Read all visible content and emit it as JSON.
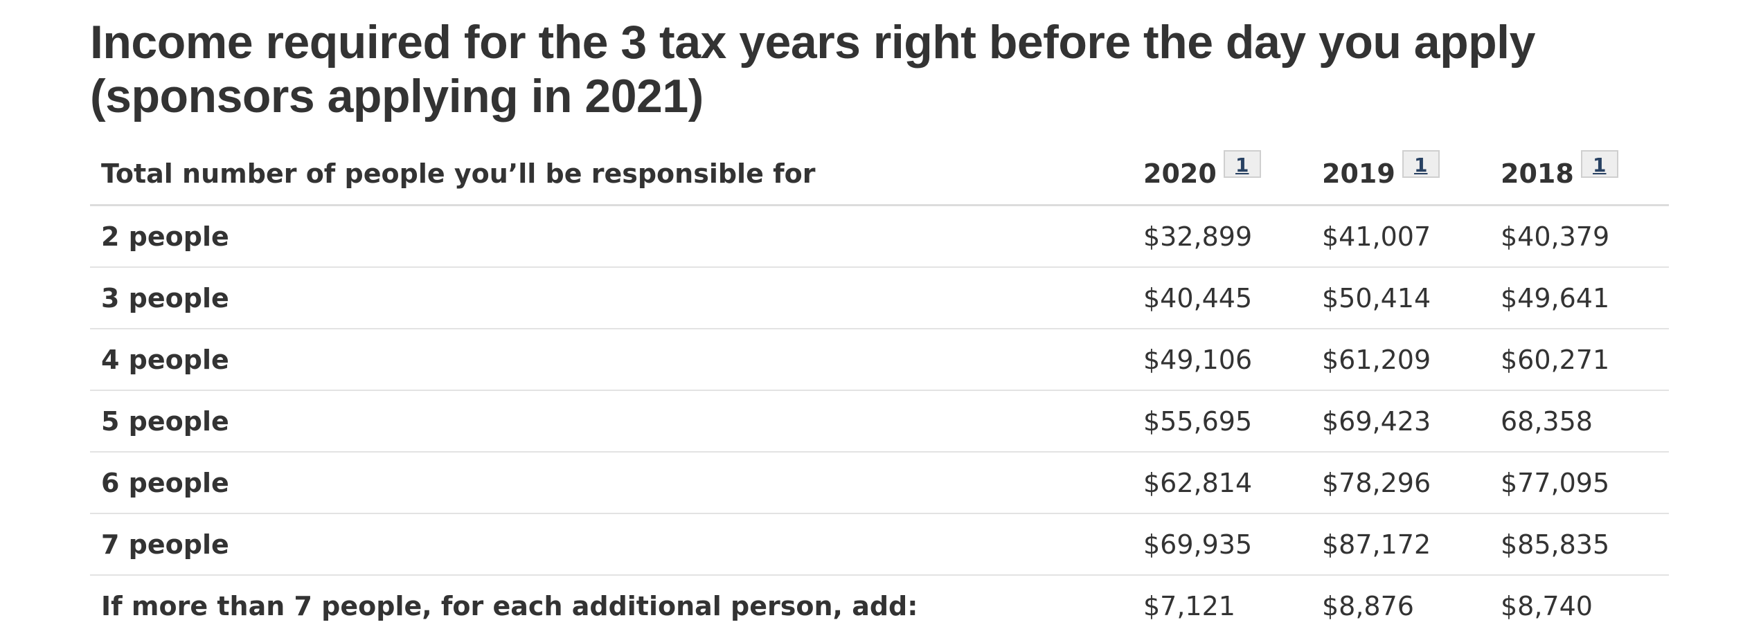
{
  "title_line1": "Income required for the 3 tax years right before the day you apply",
  "title_line2": "(sponsors applying in 2021)",
  "table": {
    "header": {
      "label": "Total number of people you’ll be responsible for",
      "years": [
        {
          "year": "2020",
          "footnote": "1"
        },
        {
          "year": "2019",
          "footnote": "1"
        },
        {
          "year": "2018",
          "footnote": "1"
        }
      ]
    },
    "rows": [
      {
        "label": "2 people",
        "values": [
          "$32,899",
          "$41,007",
          "$40,379"
        ]
      },
      {
        "label": "3 people",
        "values": [
          "$40,445",
          "$50,414",
          "$49,641"
        ]
      },
      {
        "label": "4 people",
        "values": [
          "$49,106",
          "$61,209",
          "$60,271"
        ]
      },
      {
        "label": "5 people",
        "values": [
          "$55,695",
          "$69,423",
          "68,358"
        ]
      },
      {
        "label": "6 people",
        "values": [
          "$62,814",
          "$78,296",
          "$77,095"
        ]
      },
      {
        "label": "7 people",
        "values": [
          "$69,935",
          "$87,172",
          "$85,835"
        ]
      },
      {
        "label": "If more than 7 people, for each additional person, add:",
        "values": [
          "$7,121",
          "$8,876",
          "$8,740"
        ]
      }
    ]
  },
  "colors": {
    "text": "#333333",
    "footnote_link": "#284162",
    "footnote_bg": "#eeeeee",
    "row_divider": "#e3e3e3"
  }
}
